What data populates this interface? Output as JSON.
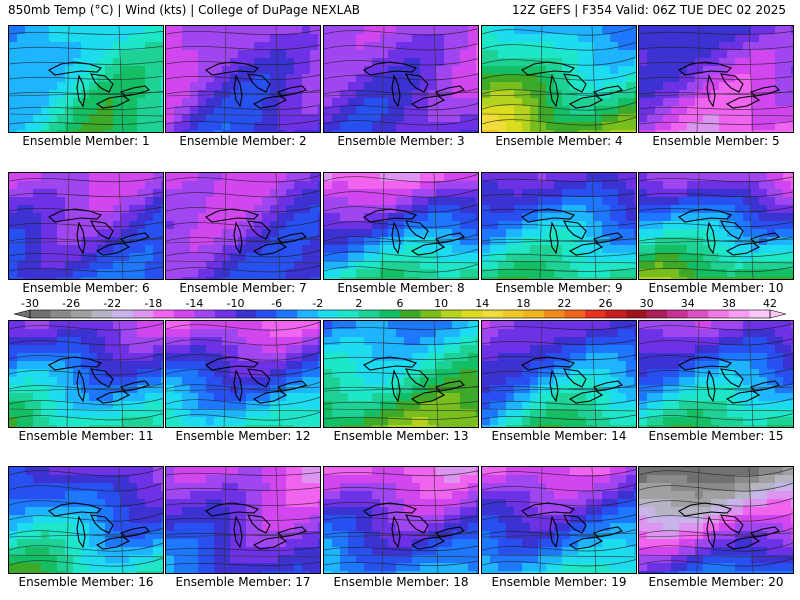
{
  "header": {
    "left": "850mb Temp (°C) | Wind (kts) | College of DuPage NEXLAB",
    "right": "12Z GEFS | F354 Valid: 06Z TUE DEC 02 2025"
  },
  "label_prefix": "Ensemble Member: ",
  "members": [
    {
      "label": "Ensemble Member: 1",
      "base": 2,
      "tilt": 6,
      "cold_west": true
    },
    {
      "label": "Ensemble Member: 2",
      "base": -12,
      "tilt": 5,
      "cold_west": true
    },
    {
      "label": "Ensemble Member: 3",
      "base": -13,
      "tilt": 4,
      "cold_west": false
    },
    {
      "label": "Ensemble Member: 4",
      "base": 2,
      "tilt": 14,
      "cold_west": true
    },
    {
      "label": "Ensemble Member: 5",
      "base": -12,
      "tilt": -8,
      "cold_west": false
    },
    {
      "label": "Ensemble Member: 6",
      "base": -9,
      "tilt": 8,
      "cold_west": false
    },
    {
      "label": "Ensemble Member: 7",
      "base": -11,
      "tilt": 6,
      "cold_west": false
    },
    {
      "label": "Ensemble Member: 8",
      "base": -8,
      "tilt": 22,
      "cold_west": false
    },
    {
      "label": "Ensemble Member: 9",
      "base": -5,
      "tilt": 16,
      "cold_west": false
    },
    {
      "label": "Ensemble Member: 10",
      "base": -4,
      "tilt": 22,
      "cold_west": false
    },
    {
      "label": "Ensemble Member: 11",
      "base": -4,
      "tilt": 16,
      "cold_west": false
    },
    {
      "label": "Ensemble Member: 12",
      "base": -6,
      "tilt": 18,
      "cold_west": false
    },
    {
      "label": "Ensemble Member: 13",
      "base": 3,
      "tilt": 14,
      "cold_west": false
    },
    {
      "label": "Ensemble Member: 14",
      "base": -4,
      "tilt": 16,
      "cold_west": true
    },
    {
      "label": "Ensemble Member: 15",
      "base": -6,
      "tilt": 18,
      "cold_west": false
    },
    {
      "label": "Ensemble Member: 16",
      "base": -6,
      "tilt": 14,
      "cold_west": true
    },
    {
      "label": "Ensemble Member: 17",
      "base": -11,
      "tilt": 8,
      "cold_west": false
    },
    {
      "label": "Ensemble Member: 18",
      "base": -9,
      "tilt": 14,
      "cold_west": false
    },
    {
      "label": "Ensemble Member: 19",
      "base": -7,
      "tilt": 16,
      "cold_west": false
    },
    {
      "label": "Ensemble Member: 20",
      "base": -18,
      "tilt": 24,
      "cold_west": false
    }
  ],
  "colorbar": {
    "unit": "°C",
    "min": -30,
    "max": 42,
    "step": 2,
    "tick_labels": [
      "-30",
      "-26",
      "-22",
      "-18",
      "-14",
      "-10",
      "-6",
      "-2",
      "2",
      "6",
      "10",
      "14",
      "18",
      "22",
      "26",
      "30",
      "34",
      "38",
      "42"
    ],
    "colors": [
      "#707070",
      "#8a8a8a",
      "#a0a0a0",
      "#b4b4c4",
      "#c8b4e8",
      "#dc96f0",
      "#f064f0",
      "#d246f0",
      "#a046f0",
      "#6e32e6",
      "#3c32d2",
      "#2850f0",
      "#1e78ff",
      "#1eb4ff",
      "#1edcf0",
      "#1ee6c8",
      "#1ed296",
      "#14be64",
      "#3caa28",
      "#78be1e",
      "#b4d21e",
      "#dcdc1e",
      "#f0dc3c",
      "#f0c828",
      "#f0b41e",
      "#f08c1e",
      "#f0641e",
      "#e6321e",
      "#c81e1e",
      "#a0141e",
      "#aa1e5a",
      "#c83296",
      "#dc50c8",
      "#f078e6",
      "#fa9ef5",
      "#fcc8fa"
    ]
  }
}
